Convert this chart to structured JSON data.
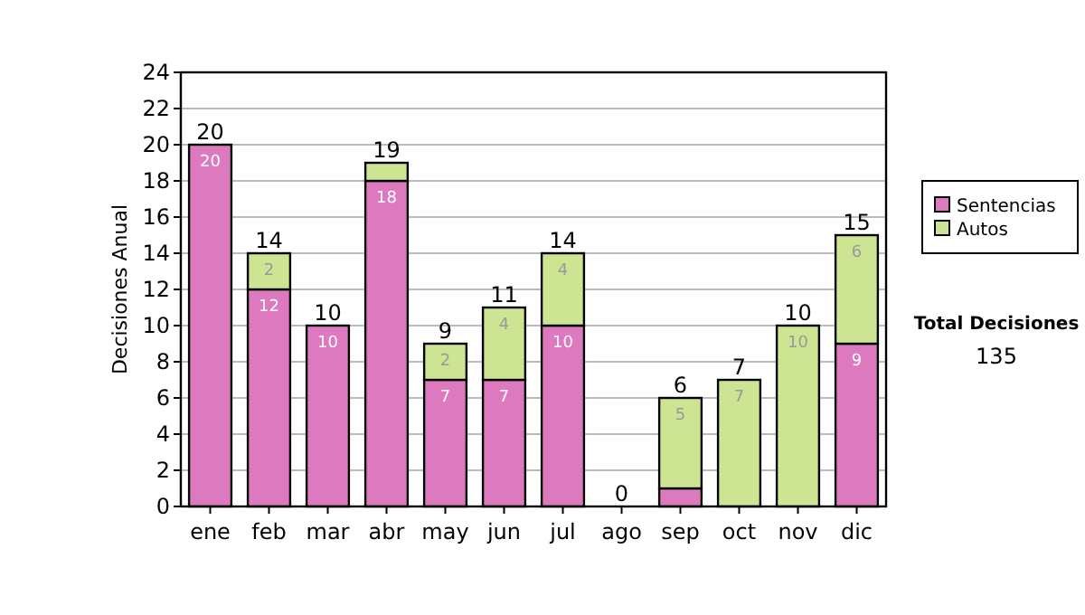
{
  "chart_data": {
    "type": "bar",
    "stacked": true,
    "ylabel": "Decisiones Anual",
    "categories": [
      "ene",
      "feb",
      "mar",
      "abr",
      "may",
      "jun",
      "jul",
      "ago",
      "sep",
      "oct",
      "nov",
      "dic"
    ],
    "series": [
      {
        "name": "Sentencias",
        "color": "#dd7abf",
        "values": [
          20,
          12,
          10,
          18,
          7,
          7,
          10,
          0,
          1,
          0,
          0,
          9
        ],
        "value_labels": [
          "20",
          "12",
          "10",
          "18",
          "7",
          "7",
          "10",
          null,
          null,
          null,
          null,
          "9"
        ]
      },
      {
        "name": "Autos",
        "color": "#cde592",
        "values": [
          0,
          2,
          0,
          1,
          2,
          4,
          4,
          0,
          5,
          7,
          10,
          6
        ],
        "value_labels": [
          null,
          "2",
          null,
          null,
          "2",
          "4",
          "4",
          null,
          "5",
          "7",
          "10",
          "6"
        ]
      }
    ],
    "totals": [
      "20",
      "14",
      "10",
      "19",
      "9",
      "11",
      "14",
      "0",
      "6",
      "7",
      "10",
      "15"
    ],
    "ylim": [
      0,
      24
    ],
    "yticks": [
      0,
      2,
      4,
      6,
      8,
      10,
      12,
      14,
      16,
      18,
      20,
      22,
      24
    ],
    "grid": "y",
    "legend": "right",
    "annotations": [
      "Total Decisiones",
      "135"
    ]
  }
}
